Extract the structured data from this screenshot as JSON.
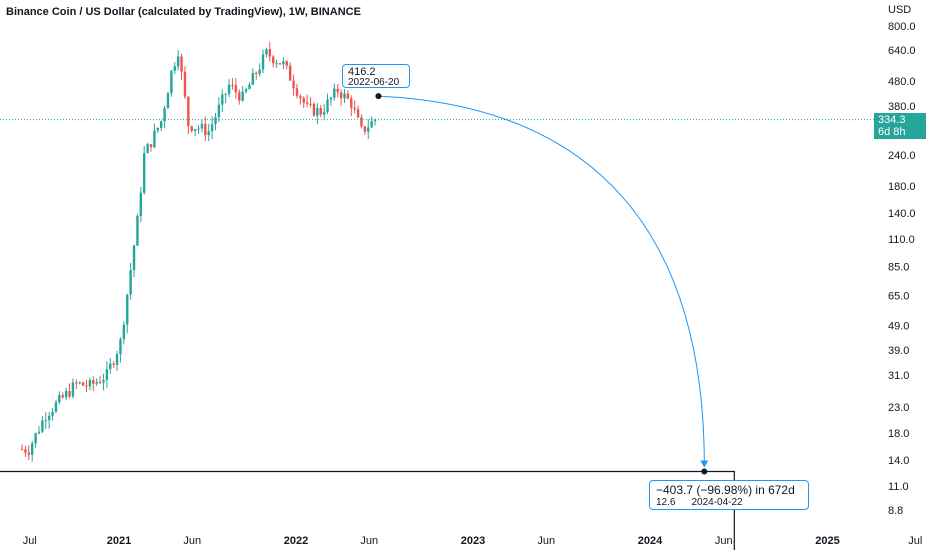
{
  "title": "Binance Coin / US Dollar (calculated by TradingView), 1W, BINANCE",
  "y_unit": "USD",
  "y_ticks": [
    "800.0",
    "640.0",
    "480.0",
    "380.0",
    "240.0",
    "180.0",
    "140.0",
    "110.0",
    "85.0",
    "65.0",
    "49.0",
    "39.0",
    "31.0",
    "23.0",
    "18.0",
    "14.0",
    "11.0",
    "8.8"
  ],
  "x_ticks": [
    {
      "label": "Jul",
      "bold": false
    },
    {
      "label": "2021",
      "bold": true
    },
    {
      "label": "Jun",
      "bold": false
    },
    {
      "label": "2022",
      "bold": true
    },
    {
      "label": "Jun",
      "bold": false
    },
    {
      "label": "2023",
      "bold": true
    },
    {
      "label": "Jun",
      "bold": false
    },
    {
      "label": "2024",
      "bold": true
    },
    {
      "label": "Jun",
      "bold": false
    },
    {
      "label": "2025",
      "bold": true
    },
    {
      "label": "Jul",
      "bold": false
    }
  ],
  "last_price": {
    "value": "334.3",
    "countdown": "6d 8h"
  },
  "callout_start": {
    "value": "416.2",
    "date": "2022-06-20"
  },
  "callout_end": {
    "change": "−403.7 (−96.98%) in 672d",
    "value": "12.6",
    "date": "2024-04-22"
  },
  "colors": {
    "up": "#26a69a",
    "down": "#ef5350",
    "arrow": "#2196f3",
    "priceline": "#26a69a"
  },
  "chart_data": {
    "type": "candlestick",
    "title": "Binance Coin / US Dollar (calculated by TradingView), 1W, BINANCE",
    "y_scale": "log",
    "ylim": [
      8,
      900
    ],
    "x_range": [
      "2020-06-15",
      "2025-07-15"
    ],
    "series_weekly_close_approx": [
      {
        "date": "2020-06-29",
        "close": 15.5
      },
      {
        "date": "2020-08-03",
        "close": 21.5
      },
      {
        "date": "2020-09-07",
        "close": 25.0
      },
      {
        "date": "2020-10-05",
        "close": 28.5
      },
      {
        "date": "2020-11-02",
        "close": 28.0
      },
      {
        "date": "2020-12-07",
        "close": 31.0
      },
      {
        "date": "2021-01-04",
        "close": 42.0
      },
      {
        "date": "2021-02-08",
        "close": 130.0
      },
      {
        "date": "2021-02-22",
        "close": 240.0
      },
      {
        "date": "2021-03-29",
        "close": 330.0
      },
      {
        "date": "2021-04-19",
        "close": 520.0
      },
      {
        "date": "2021-05-03",
        "close": 640.0
      },
      {
        "date": "2021-05-24",
        "close": 320.0
      },
      {
        "date": "2021-07-05",
        "close": 300.0
      },
      {
        "date": "2021-08-16",
        "close": 460.0
      },
      {
        "date": "2021-09-13",
        "close": 410.0
      },
      {
        "date": "2021-11-01",
        "close": 620.0
      },
      {
        "date": "2021-12-06",
        "close": 560.0
      },
      {
        "date": "2022-01-24",
        "close": 370.0
      },
      {
        "date": "2022-02-21",
        "close": 360.0
      },
      {
        "date": "2022-03-28",
        "close": 440.0
      },
      {
        "date": "2022-04-25",
        "close": 390.0
      },
      {
        "date": "2022-05-16",
        "close": 300.0
      },
      {
        "date": "2022-06-13",
        "close": 334.3
      }
    ],
    "last_price": 334.3,
    "measurement": {
      "from": {
        "date": "2022-06-20",
        "price": 416.2
      },
      "to": {
        "date": "2024-04-22",
        "price": 12.6
      },
      "change": -403.7,
      "change_pct": -96.98,
      "days": 672
    }
  }
}
